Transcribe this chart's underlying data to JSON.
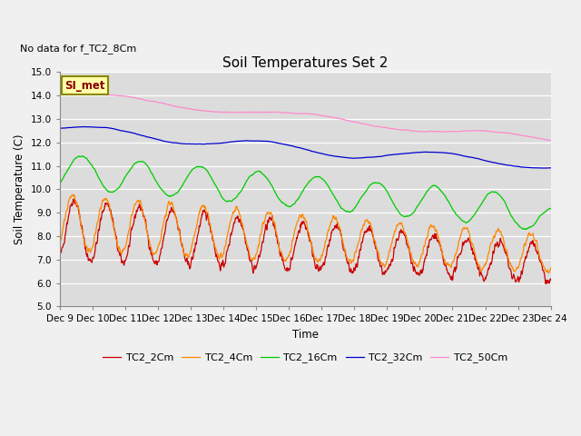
{
  "title": "Soil Temperatures Set 2",
  "subtitle": "No data for f_TC2_8Cm",
  "ylabel": "Soil Temperature (C)",
  "xlabel": "Time",
  "ylim": [
    5.0,
    15.0
  ],
  "yticks": [
    5.0,
    6.0,
    7.0,
    8.0,
    9.0,
    10.0,
    11.0,
    12.0,
    13.0,
    14.0,
    15.0
  ],
  "bg_color": "#dcdcdc",
  "plot_bg_color": "#dcdcdc",
  "series_colors": {
    "TC2_2Cm": "#cc0000",
    "TC2_4Cm": "#ff8800",
    "TC2_16Cm": "#00cc00",
    "TC2_32Cm": "#0000cc",
    "TC2_50Cm": "#ff88cc"
  },
  "annotation_text": "SI_met",
  "annotation_bg": "#ffffaa",
  "annotation_border": "#888800",
  "x_tick_labels": [
    "Dec 9",
    "Dec 10",
    "Dec 11",
    "Dec 12",
    "Dec 13",
    "Dec 14",
    "Dec 15",
    "Dec 16",
    "Dec 17",
    "Dec 18",
    "Dec 19",
    "Dec 20",
    "Dec 21",
    "Dec 22",
    "Dec 23",
    "Dec 24"
  ],
  "n_points": 1440,
  "figsize": [
    6.4,
    4.8
  ],
  "dpi": 100
}
